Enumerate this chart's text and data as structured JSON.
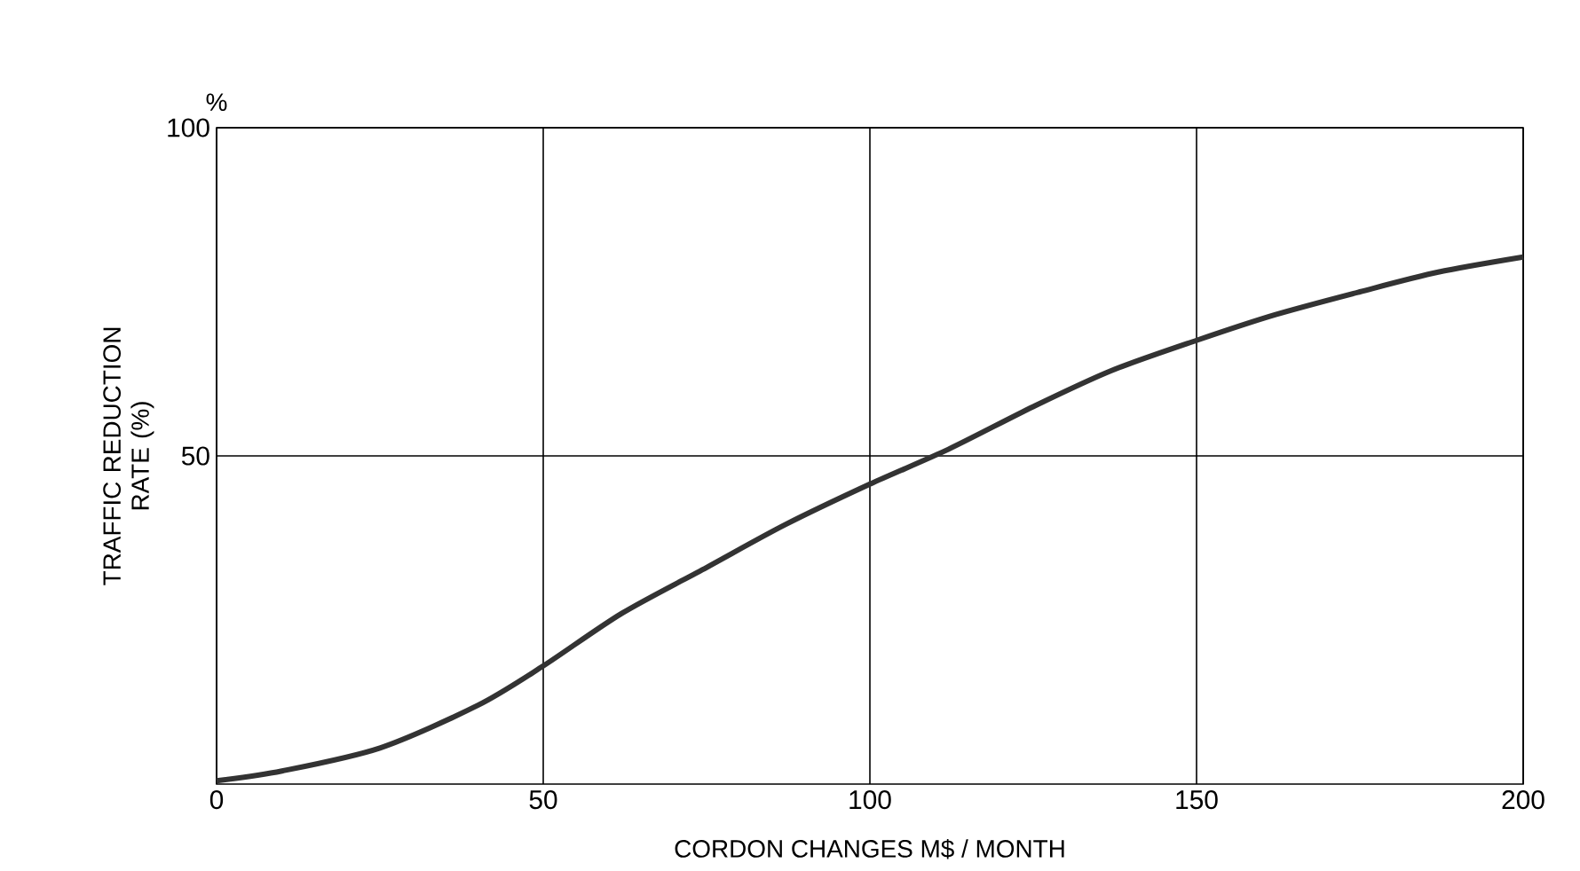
{
  "chart_data": {
    "type": "line",
    "xlabel": "CORDON    CHANGES    M$ / MONTH",
    "ylabel": "TRAFFIC REDUCTION RATE (%)",
    "annotations": [
      "%"
    ],
    "x": [
      0,
      10,
      25,
      40,
      50,
      62,
      75,
      87,
      100,
      112,
      125,
      137,
      150,
      162,
      175,
      187,
      200
    ],
    "series": [
      {
        "color": "#333333",
        "values": [
          0.5,
          2,
          5.5,
          12,
          18,
          26,
          33,
          39.5,
          45.7,
          51,
          57.5,
          63,
          67.6,
          71.5,
          75,
          78,
          80.3
        ]
      }
    ],
    "xlim": [
      0,
      200
    ],
    "ylim": [
      0,
      100
    ],
    "xticks": [
      0,
      50,
      100,
      150,
      200
    ],
    "yticks": [
      50,
      100
    ],
    "grid": true,
    "marker": "none",
    "line_style": "solid"
  }
}
